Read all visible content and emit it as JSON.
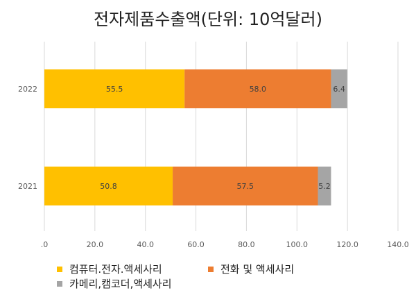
{
  "chart_data": {
    "type": "bar",
    "orientation": "horizontal",
    "stacked": true,
    "title": "전자제품수출액(단위: 10억달러)",
    "categories": [
      "2022",
      "2021"
    ],
    "series": [
      {
        "name": "컴퓨터.전자.액세사리",
        "values": [
          55.5,
          50.8
        ],
        "labels": [
          "55.5",
          "50.8"
        ],
        "color": "#FFC000"
      },
      {
        "name": "전화 및 액세사리",
        "values": [
          58.0,
          57.5
        ],
        "labels": [
          "58.0",
          "57.5"
        ],
        "color": "#ED7D31"
      },
      {
        "name": "카메리,캠코더,액세사리",
        "values": [
          6.4,
          5.2
        ],
        "labels": [
          "6.4",
          "5.2"
        ],
        "color": "#A5A5A5"
      }
    ],
    "xlim": [
      0,
      140
    ],
    "x_ticks": [
      ".0",
      "20.0",
      "40.0",
      "60.0",
      "80.0",
      "100.0",
      "120.0",
      "140.0"
    ],
    "grid": true,
    "legend_position": "bottom-left"
  }
}
